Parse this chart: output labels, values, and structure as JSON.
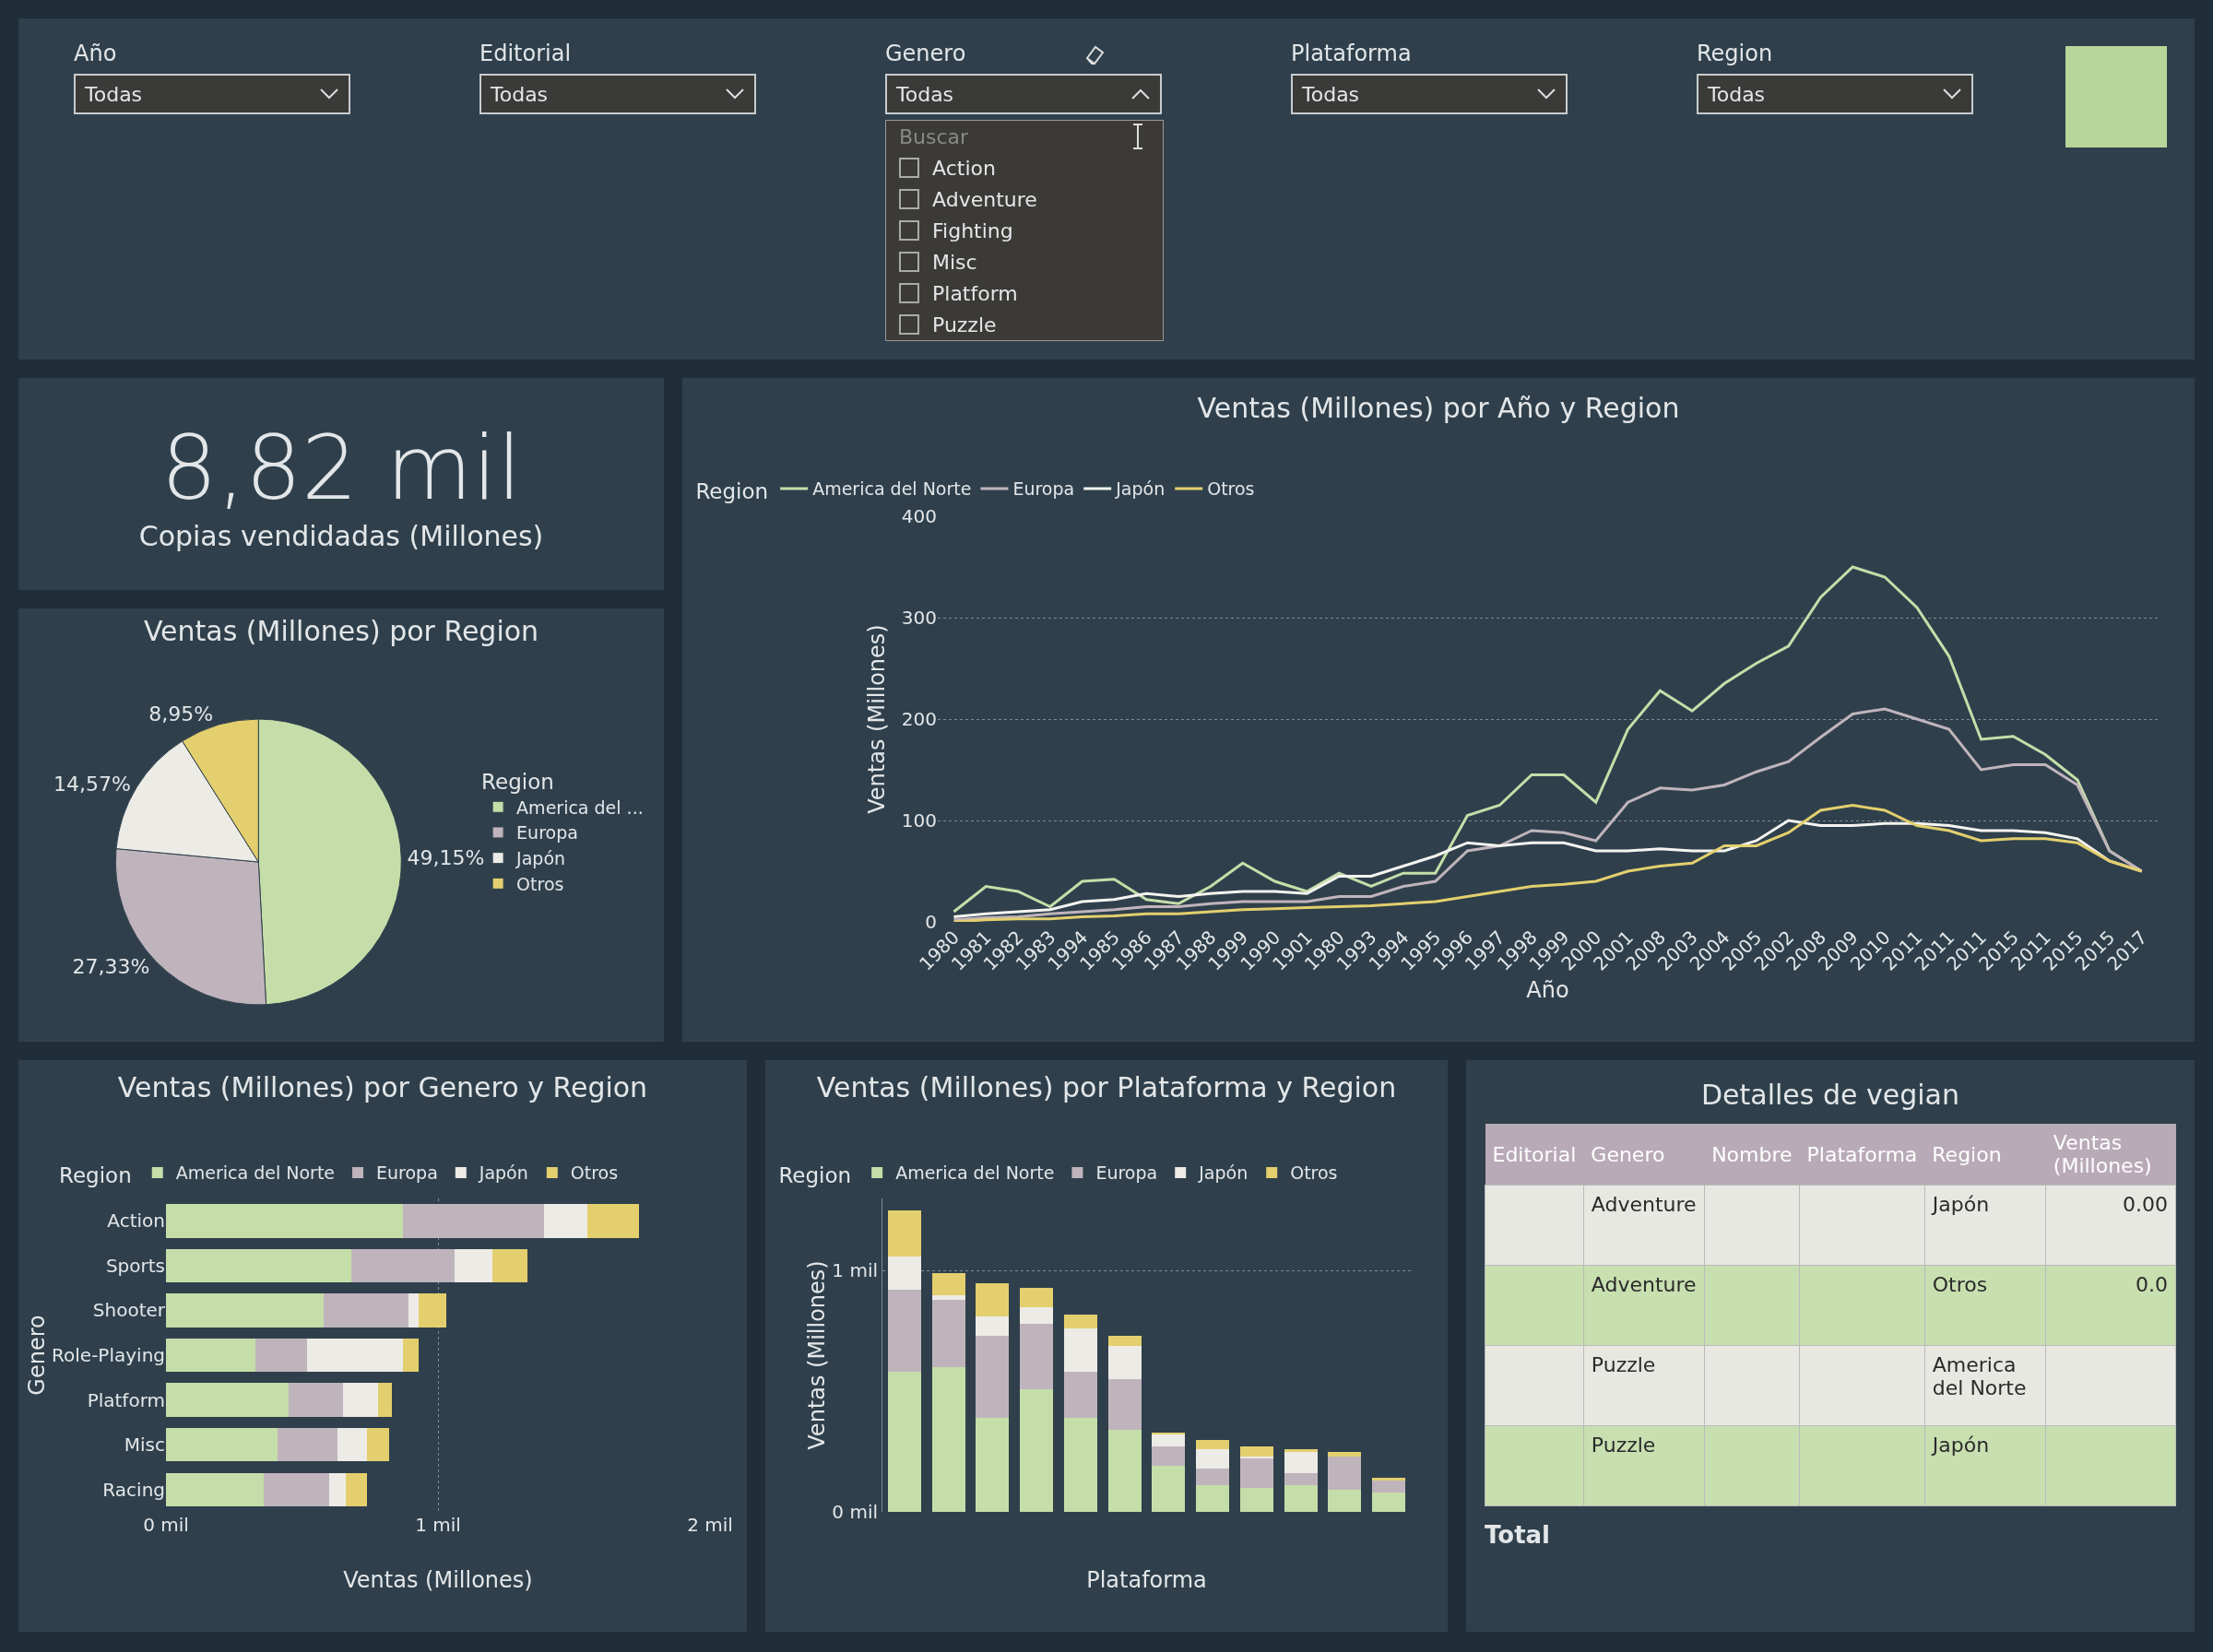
{
  "chart_data": [
    {
      "type": "other",
      "categories": [
        "Año",
        "Editorial",
        "Genero",
        "Plataforma",
        "Region"
      ],
      "cell_labels": [
        [
          "Todas",
          "Todas",
          "Todas",
          "Todas",
          "Todas"
        ]
      ],
      "annotations": [
        "Buscar",
        "Action",
        "Adventure",
        "Fighting",
        "Misc",
        "Platform",
        "Puzzle"
      ]
    },
    {
      "type": "other",
      "title": "8,82 mil",
      "subtitle": "Copias vendidadas (Millones)"
    },
    {
      "type": "pie",
      "title": "Ventas (Millones) por Region",
      "legend_title": "Region",
      "legend": "right",
      "categories": [
        "America del ...",
        "Europa",
        "Japón",
        "Otros"
      ],
      "values": [
        49.15,
        27.33,
        14.57,
        8.95
      ],
      "value_labels": [
        "49,15%",
        "27,33%",
        "14,57%",
        "8,95%"
      ],
      "colors": [
        "#c5dea9",
        "#c0b4bc",
        "#ecebe6",
        "#e3cf6e"
      ]
    },
    {
      "type": "line",
      "title": "Ventas (Millones) por Año y Region",
      "xlabel": "Año",
      "ylabel": "Ventas (Millones)",
      "legend_title": "Region",
      "legend": "top left",
      "grid": "y",
      "categories": [
        "1980",
        "1981",
        "1982",
        "1983",
        "1994",
        "1985",
        "1986",
        "1987",
        "1988",
        "1999",
        "1990",
        "1901",
        "1980",
        "1993",
        "1994",
        "1995",
        "1996",
        "1997",
        "1998",
        "1999",
        "2000",
        "2001",
        "2008",
        "2003",
        "2004",
        "2005",
        "2002",
        "2008",
        "2009",
        "2010",
        "2011",
        "2011",
        "2011",
        "2015",
        "2011",
        "2015",
        "2015",
        "2017"
      ],
      "ylim": [
        0,
        400
      ],
      "yticks": [
        0,
        100,
        200,
        300,
        400
      ],
      "series": [
        {
          "name": "America del Norte",
          "color": "#c5dea9",
          "values": [
            10,
            35,
            30,
            15,
            40,
            42,
            22,
            18,
            35,
            58,
            40,
            30,
            48,
            35,
            48,
            48,
            105,
            115,
            145,
            145,
            118,
            190,
            228,
            208,
            235,
            255,
            272,
            320,
            350,
            340,
            310,
            262,
            180,
            183,
            165,
            140,
            70,
            50
          ]
        },
        {
          "name": "Europa",
          "color": "#c0b4bc",
          "values": [
            2,
            4,
            5,
            8,
            10,
            12,
            15,
            15,
            18,
            20,
            20,
            20,
            25,
            25,
            35,
            40,
            70,
            75,
            90,
            88,
            80,
            118,
            132,
            130,
            135,
            148,
            158,
            182,
            205,
            210,
            200,
            190,
            150,
            155,
            155,
            135,
            70,
            50
          ]
        },
        {
          "name": "Japón",
          "color": "#f4f4f0",
          "values": [
            5,
            8,
            10,
            12,
            20,
            22,
            28,
            25,
            28,
            30,
            30,
            28,
            45,
            45,
            55,
            65,
            78,
            75,
            78,
            78,
            70,
            70,
            72,
            70,
            70,
            80,
            100,
            95,
            95,
            97,
            97,
            95,
            90,
            90,
            88,
            82,
            60,
            50
          ]
        },
        {
          "name": "Otros",
          "color": "#e3cf6e",
          "values": [
            0,
            2,
            3,
            3,
            5,
            6,
            8,
            8,
            10,
            12,
            13,
            14,
            15,
            16,
            18,
            20,
            25,
            30,
            35,
            37,
            40,
            50,
            55,
            58,
            75,
            75,
            88,
            110,
            115,
            110,
            95,
            90,
            80,
            82,
            82,
            78,
            60,
            50
          ]
        }
      ]
    },
    {
      "type": "bar",
      "orientation": "horizontal",
      "stacked": true,
      "title": "Ventas (Millones) por Genero y Region",
      "xlabel": "Ventas (Millones)",
      "ylabel": "Genero",
      "legend_title": "Region",
      "legend": "top left",
      "grid": "x",
      "categories": [
        "Action",
        "Sports",
        "Shooter",
        "Role-Playing",
        "Platform",
        "Misc",
        "Racing"
      ],
      "xlim": [
        0,
        2
      ],
      "xticks": [
        {
          "value": 0,
          "label": "0 mil"
        },
        {
          "value": 1,
          "label": "1 mil"
        },
        {
          "value": 2,
          "label": "2 mil"
        }
      ],
      "series": [
        {
          "name": "America del Norte",
          "color": "#c5dea9",
          "values": [
            0.87,
            0.68,
            0.58,
            0.33,
            0.45,
            0.41,
            0.36
          ]
        },
        {
          "name": "Europa",
          "color": "#c0b4bc",
          "values": [
            0.52,
            0.38,
            0.31,
            0.19,
            0.2,
            0.22,
            0.24
          ]
        },
        {
          "name": "Japón",
          "color": "#ecebe6",
          "values": [
            0.16,
            0.14,
            0.04,
            0.35,
            0.13,
            0.11,
            0.06
          ]
        },
        {
          "name": "Otros",
          "color": "#e3cf6e",
          "values": [
            0.19,
            0.13,
            0.1,
            0.06,
            0.05,
            0.08,
            0.08
          ]
        }
      ]
    },
    {
      "type": "bar",
      "stacked": true,
      "title": "Ventas (Millones) por Plataforma y Region",
      "xlabel": "Plataforma",
      "ylabel": "Ventas (Millones)",
      "legend_title": "Region",
      "legend": "top left",
      "grid": "y",
      "categories": [
        null,
        null,
        null,
        null,
        null,
        null,
        null,
        null,
        null,
        null,
        null,
        null
      ],
      "ylim": [
        0,
        1.3
      ],
      "yticks": [
        {
          "value": 0,
          "label": "0 mil"
        },
        {
          "value": 1,
          "label": "1 mil"
        }
      ],
      "series": [
        {
          "name": "America del Norte",
          "color": "#c5dea9",
          "values": [
            0.58,
            0.6,
            0.39,
            0.51,
            0.39,
            0.34,
            0.19,
            0.11,
            0.1,
            0.11,
            0.09,
            0.08
          ]
        },
        {
          "name": "Europa",
          "color": "#c0b4bc",
          "values": [
            0.34,
            0.28,
            0.34,
            0.27,
            0.19,
            0.21,
            0.08,
            0.07,
            0.12,
            0.05,
            0.14,
            0.05
          ]
        },
        {
          "name": "Japón",
          "color": "#ecebe6",
          "values": [
            0.14,
            0.02,
            0.08,
            0.07,
            0.18,
            0.14,
            0.05,
            0.08,
            0.01,
            0.09,
            0,
            0
          ]
        },
        {
          "name": "Otros",
          "color": "#e3cf6e",
          "values": [
            0.19,
            0.09,
            0.14,
            0.08,
            0.06,
            0.04,
            0.01,
            0.04,
            0.04,
            0.01,
            0.02,
            0.01
          ]
        }
      ]
    },
    {
      "type": "other",
      "title": "Detalles de vegian",
      "categories": [
        "Editorial",
        "Genero",
        "Nombre",
        "Plataforma",
        "Region",
        "Ventas (Millones)"
      ],
      "cells": [
        [
          null,
          "Adventure",
          null,
          null,
          "Japón",
          "0.00"
        ],
        [
          null,
          "Adventure",
          null,
          null,
          "Otros",
          "0.0"
        ],
        [
          null,
          "Puzzle",
          null,
          null,
          "America del Norte",
          null
        ],
        [
          null,
          "Puzzle",
          null,
          null,
          "Japón",
          null
        ]
      ],
      "annotations": [
        "Total"
      ]
    }
  ]
}
